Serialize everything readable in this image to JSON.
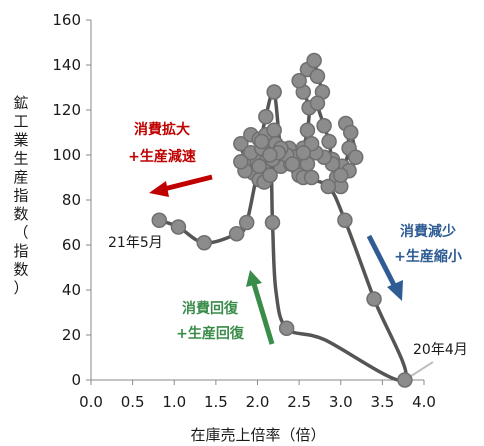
{
  "chart_data": {
    "type": "scatter",
    "xlabel": "在庫売上倍率（倍）",
    "ylabel": "鉱工業生産指数（指数）",
    "xlim": [
      0.0,
      4.0
    ],
    "ylim": [
      0,
      160
    ],
    "x_ticks": [
      "0.0",
      "0.5",
      "1.0",
      "1.5",
      "2.0",
      "2.5",
      "3.0",
      "3.5",
      "4.0"
    ],
    "y_ticks": [
      "0",
      "20",
      "40",
      "60",
      "80",
      "100",
      "120",
      "140",
      "160"
    ],
    "grid": false,
    "colors": {
      "line": "#555555",
      "marker_fill": "#8c8c8c",
      "marker_stroke": "#6f6f6f",
      "expand": "#c00000",
      "decrease": "#2e5c93",
      "recovery": "#3a8c4a",
      "leader": "#bfbfbf"
    },
    "series": [
      {
        "points": [
          [
            1.9,
            100
          ],
          [
            1.95,
            92
          ],
          [
            1.87,
            97
          ],
          [
            1.8,
            105
          ],
          [
            1.92,
            109
          ],
          [
            2.02,
            107
          ],
          [
            2.0,
            97
          ],
          [
            1.85,
            93
          ],
          [
            1.92,
            101
          ],
          [
            2.05,
            103
          ],
          [
            2.1,
            109
          ],
          [
            2.2,
            111
          ],
          [
            2.15,
            100
          ],
          [
            2.22,
            105
          ],
          [
            2.28,
            95
          ],
          [
            2.38,
            103
          ],
          [
            2.44,
            99
          ],
          [
            2.48,
            94
          ],
          [
            2.55,
            103
          ],
          [
            2.6,
            111
          ],
          [
            2.62,
            121
          ],
          [
            2.55,
            128
          ],
          [
            2.5,
            133
          ],
          [
            2.6,
            138
          ],
          [
            2.68,
            142
          ],
          [
            2.72,
            135
          ],
          [
            2.78,
            128
          ],
          [
            2.72,
            123
          ],
          [
            2.8,
            113
          ],
          [
            2.86,
            106
          ],
          [
            2.9,
            98
          ],
          [
            3.02,
            95
          ],
          [
            3.1,
            103
          ],
          [
            3.06,
            114
          ],
          [
            3.12,
            110
          ],
          [
            3.18,
            99
          ],
          [
            3.1,
            93
          ],
          [
            2.95,
            90
          ],
          [
            3.0,
            86
          ],
          [
            3.0,
            91
          ],
          [
            2.9,
            96
          ],
          [
            2.8,
            99
          ],
          [
            2.7,
            101
          ],
          [
            2.65,
            105
          ],
          [
            2.6,
            96
          ],
          [
            2.5,
            91
          ],
          [
            2.4,
            96
          ],
          [
            2.35,
            100
          ],
          [
            2.28,
            103
          ],
          [
            2.2,
            128
          ],
          [
            2.1,
            117
          ],
          [
            2.05,
            106
          ],
          [
            2.1,
            97
          ],
          [
            2.02,
            89
          ],
          [
            2.15,
            91
          ],
          [
            2.2,
            99
          ],
          [
            2.18,
            98
          ],
          [
            2.08,
            88
          ],
          [
            2.25,
            101
          ],
          [
            2.15,
            91
          ],
          [
            2.42,
            96
          ],
          [
            2.55,
            90
          ],
          [
            2.55,
            101
          ],
          [
            2.65,
            90
          ],
          [
            2.85,
            86
          ],
          [
            3.05,
            71
          ],
          [
            3.4,
            36
          ],
          [
            3.77,
            0
          ],
          [
            2.35,
            23
          ],
          [
            2.18,
            70
          ],
          [
            2.15,
            100
          ],
          [
            2.02,
            95
          ],
          [
            1.8,
            97
          ],
          [
            1.87,
            70
          ],
          [
            1.75,
            65
          ],
          [
            1.36,
            61
          ],
          [
            1.05,
            68
          ],
          [
            0.82,
            71
          ]
        ],
        "path_order": [
          [
            1.9,
            100
          ],
          [
            1.95,
            92
          ],
          [
            1.87,
            97
          ],
          [
            1.8,
            105
          ],
          [
            1.92,
            109
          ],
          [
            2.02,
            107
          ],
          [
            2.0,
            97
          ],
          [
            1.85,
            93
          ],
          [
            1.92,
            101
          ],
          [
            2.05,
            103
          ],
          [
            2.1,
            109
          ],
          [
            2.2,
            111
          ],
          [
            2.15,
            100
          ],
          [
            2.22,
            105
          ],
          [
            2.28,
            95
          ],
          [
            2.38,
            103
          ],
          [
            2.44,
            99
          ],
          [
            2.48,
            94
          ],
          [
            2.55,
            103
          ],
          [
            2.6,
            111
          ],
          [
            2.62,
            121
          ],
          [
            2.55,
            128
          ],
          [
            2.5,
            133
          ],
          [
            2.6,
            138
          ],
          [
            2.68,
            142
          ],
          [
            2.72,
            135
          ],
          [
            2.78,
            128
          ],
          [
            2.72,
            123
          ],
          [
            2.8,
            113
          ],
          [
            2.86,
            106
          ],
          [
            2.9,
            98
          ],
          [
            3.02,
            95
          ],
          [
            3.1,
            103
          ],
          [
            3.06,
            114
          ],
          [
            3.12,
            110
          ],
          [
            3.18,
            99
          ],
          [
            3.1,
            93
          ],
          [
            2.95,
            90
          ],
          [
            3.0,
            86
          ],
          [
            2.9,
            96
          ],
          [
            2.7,
            101
          ],
          [
            2.6,
            96
          ],
          [
            2.5,
            91
          ],
          [
            2.4,
            96
          ],
          [
            2.28,
            103
          ],
          [
            2.2,
            128
          ],
          [
            2.1,
            117
          ],
          [
            2.05,
            106
          ],
          [
            2.1,
            97
          ],
          [
            2.02,
            89
          ],
          [
            2.15,
            91
          ],
          [
            2.25,
            101
          ],
          [
            2.42,
            96
          ],
          [
            2.55,
            90
          ],
          [
            2.85,
            86
          ],
          [
            3.05,
            71
          ],
          [
            3.4,
            36
          ],
          [
            3.77,
            0
          ],
          [
            2.8,
            18
          ],
          [
            2.35,
            23
          ],
          [
            2.22,
            40
          ],
          [
            2.18,
            70
          ],
          [
            2.15,
            100
          ],
          [
            2.02,
            95
          ],
          [
            1.87,
            70
          ],
          [
            1.75,
            65
          ],
          [
            1.36,
            61
          ],
          [
            1.05,
            68
          ],
          [
            0.82,
            71
          ]
        ]
      }
    ],
    "annotations": {
      "label_2021_05": {
        "text": "21年5月",
        "x": 0.82,
        "y": 71
      },
      "label_2020_04": {
        "text": "20年4月",
        "x": 3.77,
        "y": 0
      },
      "expand_text": [
        "消費拡大",
        "+生産減速"
      ],
      "decrease_text": [
        "消費減少",
        "+生産縮小"
      ],
      "recovery_text": [
        "消費回復",
        "+生産回復"
      ]
    }
  }
}
